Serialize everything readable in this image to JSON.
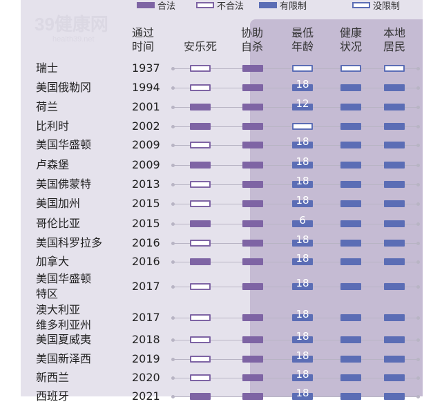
{
  "legend": [
    {
      "label": "合法",
      "kind": "legal"
    },
    {
      "label": "不合法",
      "kind": "illegal"
    },
    {
      "label": "有限制",
      "kind": "limited"
    },
    {
      "label": "没限制",
      "kind": "unlimited"
    }
  ],
  "headers": {
    "year": "通过\n时间",
    "euthanasia": "安乐死",
    "assisted": "协助\n自杀",
    "min_age": "最低\n年龄",
    "health": "健康\n状况",
    "resident": "本地\n居民"
  },
  "watermark": {
    "logo": "39健康网",
    "url": "health39.net"
  },
  "chart_data": {
    "type": "table",
    "columns": [
      "通过时间",
      "安乐死",
      "协助自杀",
      "最低年龄",
      "健康状况",
      "本地居民"
    ],
    "rows": [
      {
        "name": "瑞士",
        "year": "1937",
        "euthanasia": "illegal",
        "assisted": "legal",
        "min_age": "unlimited",
        "age": "",
        "health": "unlimited",
        "resident": "unlimited"
      },
      {
        "name": "美国俄勒冈",
        "year": "1994",
        "euthanasia": "illegal",
        "assisted": "legal",
        "min_age": "limited",
        "age": "18",
        "health": "limited",
        "resident": "limited"
      },
      {
        "name": "荷兰",
        "year": "2001",
        "euthanasia": "legal",
        "assisted": "legal",
        "min_age": "limited",
        "age": "12",
        "health": "limited",
        "resident": "limited"
      },
      {
        "name": "比利时",
        "year": "2002",
        "euthanasia": "legal",
        "assisted": "legal",
        "min_age": "unlimited",
        "age": "",
        "health": "limited",
        "resident": "limited"
      },
      {
        "name": "美国华盛顿",
        "year": "2009",
        "euthanasia": "illegal",
        "assisted": "legal",
        "min_age": "limited",
        "age": "18",
        "health": "limited",
        "resident": "limited"
      },
      {
        "name": "卢森堡",
        "year": "2009",
        "euthanasia": "legal",
        "assisted": "legal",
        "min_age": "limited",
        "age": "18",
        "health": "limited",
        "resident": "limited"
      },
      {
        "name": "美国佛蒙特",
        "year": "2013",
        "euthanasia": "illegal",
        "assisted": "legal",
        "min_age": "limited",
        "age": "18",
        "health": "limited",
        "resident": "limited"
      },
      {
        "name": "美国加州",
        "year": "2015",
        "euthanasia": "illegal",
        "assisted": "legal",
        "min_age": "limited",
        "age": "18",
        "health": "limited",
        "resident": "limited"
      },
      {
        "name": "哥伦比亚",
        "year": "2015",
        "euthanasia": "legal",
        "assisted": "legal",
        "min_age": "limited",
        "age": "6",
        "health": "limited",
        "resident": "limited"
      },
      {
        "name": "美国科罗拉多",
        "year": "2016",
        "euthanasia": "illegal",
        "assisted": "legal",
        "min_age": "limited",
        "age": "18",
        "health": "limited",
        "resident": "limited"
      },
      {
        "name": "加拿大",
        "year": "2016",
        "euthanasia": "legal",
        "assisted": "legal",
        "min_age": "limited",
        "age": "18",
        "health": "limited",
        "resident": "limited"
      },
      {
        "name": "美国华盛顿\n特区",
        "year": "2017",
        "euthanasia": "illegal",
        "assisted": "legal",
        "min_age": "limited",
        "age": "18",
        "health": "limited",
        "resident": "limited"
      },
      {
        "name": "澳大利亚\n维多利亚州",
        "year": "2017",
        "euthanasia": "illegal",
        "assisted": "legal",
        "min_age": "limited",
        "age": "18",
        "health": "limited",
        "resident": "limited"
      },
      {
        "name": "美国夏威夷",
        "year": "2018",
        "euthanasia": "illegal",
        "assisted": "legal",
        "min_age": "limited",
        "age": "18",
        "health": "limited",
        "resident": "limited"
      },
      {
        "name": "美国新泽西",
        "year": "2019",
        "euthanasia": "illegal",
        "assisted": "legal",
        "min_age": "limited",
        "age": "18",
        "health": "limited",
        "resident": "limited"
      },
      {
        "name": "新西兰",
        "year": "2020",
        "euthanasia": "illegal",
        "assisted": "legal",
        "min_age": "limited",
        "age": "18",
        "health": "limited",
        "resident": "limited"
      },
      {
        "name": "西班牙",
        "year": "2021",
        "euthanasia": "legal",
        "assisted": "legal",
        "min_age": "limited",
        "age": "18",
        "health": "limited",
        "resident": "limited"
      }
    ]
  }
}
